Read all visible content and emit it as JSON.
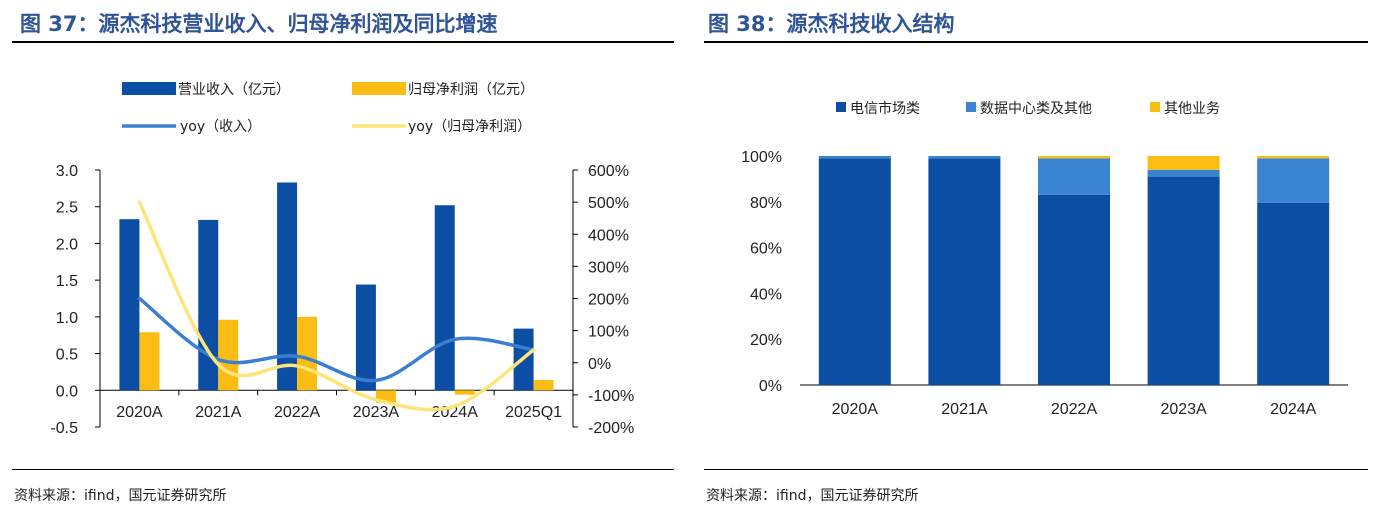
{
  "charts": [
    {
      "title": "图 37：源杰科技营业收入、归母净利润及同比增速",
      "source": "资料来源：ifind，国元证券研究所",
      "colors": {
        "revenue": "#0d4ea5",
        "profit": "#fbbd14",
        "yoy_rev": "#3a7fd0",
        "yoy_profit": "#fde57a"
      }
    },
    {
      "title": "图 38：源杰科技收入结构",
      "source": "资料来源：ifind，国元证券研究所",
      "colors": {
        "telecom": "#0d4ea5",
        "datacenter": "#3b84d2",
        "other": "#fbbd14"
      }
    }
  ],
  "chart_data": [
    {
      "type": "bar",
      "categories": [
        "2020A",
        "2021A",
        "2022A",
        "2023A",
        "2024A",
        "2025Q1"
      ],
      "series": [
        {
          "name": "营业收入（亿元）",
          "type": "bar",
          "axis": "left",
          "values": [
            2.33,
            2.32,
            2.83,
            1.44,
            2.52,
            0.84
          ]
        },
        {
          "name": "归母净利润（亿元）",
          "type": "bar",
          "axis": "left",
          "values": [
            0.79,
            0.96,
            1.0,
            -0.17,
            -0.06,
            0.14
          ]
        },
        {
          "name": "yoy（收入）",
          "type": "line",
          "axis": "right",
          "values": [
            200,
            10,
            20,
            -55,
            73,
            40
          ]
        },
        {
          "name": "yoy（归母净利润）",
          "type": "line",
          "axis": "right",
          "values": [
            500,
            -5,
            -10,
            -115,
            -135,
            40
          ]
        }
      ],
      "ylim_left": [
        -0.5,
        3.0
      ],
      "yticks_left": [
        "-0.5",
        "0.0",
        "0.5",
        "1.0",
        "1.5",
        "2.0",
        "2.5",
        "3.0"
      ],
      "ylim_right": [
        -200,
        600
      ],
      "yticks_right": [
        "-200%",
        "-100%",
        "0%",
        "100%",
        "200%",
        "300%",
        "400%",
        "500%",
        "600%"
      ],
      "legend_position": "top"
    },
    {
      "type": "bar",
      "stacked": true,
      "categories": [
        "2020A",
        "2021A",
        "2022A",
        "2023A",
        "2024A"
      ],
      "series": [
        {
          "name": "电信市场类",
          "values": [
            99,
            99,
            83,
            91,
            79.5
          ]
        },
        {
          "name": "数据中心类及其他",
          "values": [
            1,
            1,
            16,
            3,
            19.5
          ]
        },
        {
          "name": "其他业务",
          "values": [
            0,
            0,
            1,
            6,
            1
          ]
        }
      ],
      "ylim": [
        0,
        100
      ],
      "yticks": [
        "0%",
        "20%",
        "40%",
        "60%",
        "80%",
        "100%"
      ],
      "legend_position": "top"
    }
  ]
}
